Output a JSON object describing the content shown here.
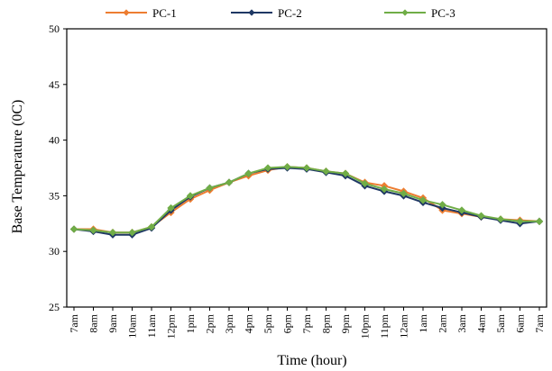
{
  "chart_data": {
    "type": "line",
    "title": "",
    "xlabel": "Time (hour)",
    "ylabel": "Base Temperature (0C)",
    "ylim": [
      25,
      50
    ],
    "yticks": [
      25,
      30,
      35,
      40,
      45,
      50
    ],
    "grid": false,
    "legend_position": "top",
    "categories": [
      "7am",
      "8am",
      "9am",
      "10am",
      "11am",
      "12pm",
      "1pm",
      "2pm",
      "3pm",
      "4pm",
      "5pm",
      "6pm",
      "7pm",
      "8pm",
      "9pm",
      "10pm",
      "11pm",
      "12am",
      "1am",
      "2am",
      "3am",
      "4am",
      "5am",
      "6am",
      "7am"
    ],
    "series": [
      {
        "name": "PC-1",
        "color": "#ED7D31",
        "marker": "diamond",
        "values": [
          32.0,
          32.0,
          31.7,
          31.7,
          32.2,
          33.5,
          34.7,
          35.5,
          36.2,
          36.8,
          37.3,
          37.6,
          37.5,
          37.2,
          37.0,
          36.2,
          35.9,
          35.4,
          34.8,
          33.7,
          33.4,
          33.1,
          32.9,
          32.8,
          32.7
        ]
      },
      {
        "name": "PC-2",
        "color": "#1F3864",
        "marker": "diamond",
        "values": [
          32.0,
          31.8,
          31.5,
          31.5,
          32.1,
          33.7,
          34.9,
          35.7,
          36.2,
          37.0,
          37.4,
          37.5,
          37.4,
          37.1,
          36.8,
          35.9,
          35.4,
          35.0,
          34.4,
          33.9,
          33.5,
          33.1,
          32.8,
          32.5,
          32.7
        ]
      },
      {
        "name": "PC-3",
        "color": "#70AD47",
        "marker": "diamond",
        "values": [
          32.0,
          31.9,
          31.7,
          31.7,
          32.2,
          33.9,
          35.0,
          35.7,
          36.2,
          37.0,
          37.5,
          37.6,
          37.5,
          37.2,
          37.0,
          36.1,
          35.6,
          35.2,
          34.6,
          34.2,
          33.7,
          33.2,
          32.9,
          32.7,
          32.7
        ]
      }
    ]
  }
}
